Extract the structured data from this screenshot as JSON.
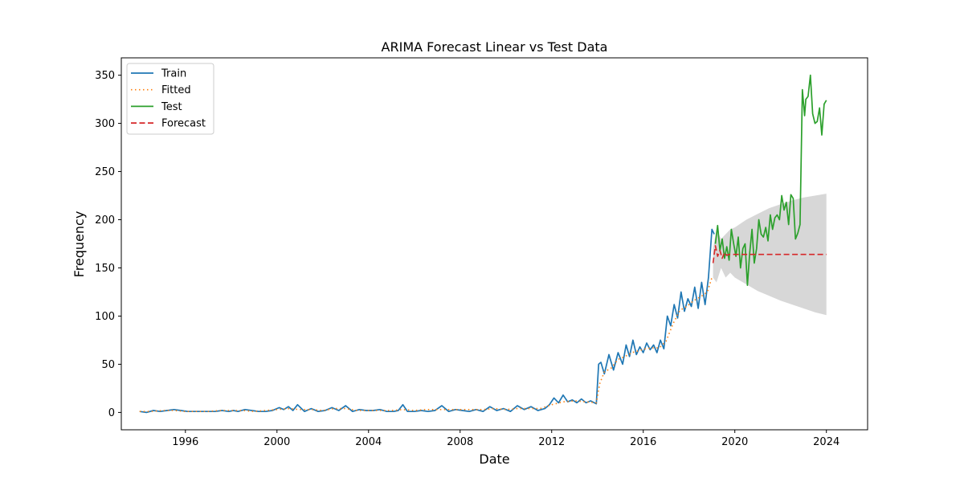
{
  "chart_data": {
    "type": "line",
    "title": "ARIMA Forecast Linear vs Test Data",
    "xlabel": "Date",
    "ylabel": "Frequency",
    "xlim": [
      1993.2,
      2025.8
    ],
    "ylim": [
      -18,
      368
    ],
    "xticks": [
      1996,
      2000,
      2004,
      2008,
      2012,
      2016,
      2020,
      2024
    ],
    "yticks": [
      0,
      50,
      100,
      150,
      200,
      250,
      300,
      350
    ],
    "grid": false,
    "legend_position": "top-left",
    "colors": {
      "train": "#1f77b4",
      "fitted": "#ff7f0e",
      "test": "#2ca02c",
      "forecast": "#d62728",
      "confidence_band": "#d3d3d3"
    },
    "series": [
      {
        "name": "Train",
        "style": "solid",
        "x": [
          1994.0,
          1994.3,
          1994.6,
          1994.9,
          1995.2,
          1995.5,
          1995.8,
          1996.1,
          1996.4,
          1996.7,
          1997.0,
          1997.3,
          1997.6,
          1997.9,
          1998.1,
          1998.3,
          1998.6,
          1998.9,
          1999.2,
          1999.5,
          1999.8,
          2000.1,
          2000.3,
          2000.5,
          2000.7,
          2000.9,
          2001.2,
          2001.5,
          2001.8,
          2002.1,
          2002.4,
          2002.7,
          2003.0,
          2003.3,
          2003.6,
          2003.9,
          2004.2,
          2004.5,
          2004.8,
          2005.1,
          2005.3,
          2005.5,
          2005.7,
          2006.0,
          2006.3,
          2006.6,
          2006.9,
          2007.2,
          2007.5,
          2007.8,
          2008.1,
          2008.4,
          2008.7,
          2009.0,
          2009.3,
          2009.6,
          2009.9,
          2010.2,
          2010.5,
          2010.8,
          2011.1,
          2011.4,
          2011.7,
          2011.9,
          2012.1,
          2012.3,
          2012.5,
          2012.7,
          2012.9,
          2013.1,
          2013.3,
          2013.5,
          2013.7,
          2013.95,
          2014.05,
          2014.15,
          2014.3,
          2014.5,
          2014.7,
          2014.9,
          2015.1,
          2015.25,
          2015.4,
          2015.55,
          2015.7,
          2015.85,
          2016.0,
          2016.15,
          2016.3,
          2016.45,
          2016.6,
          2016.75,
          2016.9,
          2017.05,
          2017.2,
          2017.35,
          2017.5,
          2017.65,
          2017.8,
          2017.95,
          2018.1,
          2018.25,
          2018.4,
          2018.55,
          2018.7,
          2018.85,
          2019.0,
          2019.1
        ],
        "y": [
          1,
          0,
          2,
          1,
          2,
          3,
          2,
          1,
          1,
          1,
          1,
          1,
          2,
          1,
          2,
          1,
          3,
          2,
          1,
          1,
          2,
          5,
          3,
          6,
          2,
          8,
          1,
          4,
          1,
          2,
          5,
          2,
          7,
          1,
          3,
          2,
          2,
          3,
          1,
          1,
          2,
          8,
          1,
          1,
          2,
          1,
          2,
          7,
          1,
          3,
          2,
          1,
          3,
          1,
          6,
          2,
          4,
          1,
          7,
          3,
          6,
          2,
          4,
          8,
          15,
          10,
          18,
          11,
          13,
          10,
          14,
          10,
          12,
          9,
          50,
          52,
          40,
          60,
          44,
          62,
          50,
          70,
          58,
          75,
          60,
          68,
          62,
          72,
          65,
          70,
          62,
          75,
          66,
          100,
          90,
          112,
          98,
          125,
          105,
          118,
          110,
          130,
          108,
          135,
          112,
          140,
          190,
          185
        ]
      },
      {
        "name": "Fitted",
        "style": "dotted",
        "x": [
          1994.0,
          1994.5,
          1995.0,
          1995.5,
          1996.0,
          1996.5,
          1997.0,
          1997.5,
          1998.0,
          1998.5,
          1999.0,
          1999.5,
          2000.0,
          2000.5,
          2001.0,
          2001.5,
          2002.0,
          2002.5,
          2003.0,
          2003.5,
          2004.0,
          2004.5,
          2005.0,
          2005.5,
          2006.0,
          2006.5,
          2007.0,
          2007.5,
          2008.0,
          2008.5,
          2009.0,
          2009.5,
          2010.0,
          2010.5,
          2011.0,
          2011.5,
          2012.0,
          2012.5,
          2013.0,
          2013.5,
          2013.95,
          2014.1,
          2014.3,
          2014.6,
          2014.9,
          2015.2,
          2015.5,
          2015.8,
          2016.1,
          2016.4,
          2016.7,
          2017.0,
          2017.3,
          2017.6,
          2017.9,
          2018.2,
          2018.5,
          2018.8,
          2019.0
        ],
        "y": [
          1,
          1,
          2,
          2,
          1,
          1,
          1,
          2,
          2,
          2,
          1,
          2,
          3,
          4,
          3,
          3,
          2,
          4,
          4,
          2,
          2,
          2,
          2,
          3,
          2,
          3,
          3,
          3,
          3,
          3,
          3,
          4,
          3,
          4,
          4,
          4,
          8,
          11,
          12,
          11,
          10,
          30,
          42,
          46,
          55,
          58,
          62,
          64,
          66,
          67,
          67,
          74,
          92,
          106,
          110,
          116,
          120,
          125,
          140
        ]
      },
      {
        "name": "Test",
        "style": "solid",
        "x": [
          2019.15,
          2019.25,
          2019.35,
          2019.45,
          2019.55,
          2019.65,
          2019.75,
          2019.85,
          2019.95,
          2020.05,
          2020.15,
          2020.25,
          2020.35,
          2020.45,
          2020.55,
          2020.65,
          2020.75,
          2020.85,
          2020.95,
          2021.05,
          2021.15,
          2021.25,
          2021.35,
          2021.45,
          2021.55,
          2021.65,
          2021.75,
          2021.85,
          2021.95,
          2022.05,
          2022.15,
          2022.25,
          2022.35,
          2022.45,
          2022.55,
          2022.65,
          2022.75,
          2022.85,
          2022.95,
          2023.05,
          2023.1,
          2023.2,
          2023.3,
          2023.4,
          2023.5,
          2023.6,
          2023.7,
          2023.8,
          2023.9,
          2024.0
        ],
        "y": [
          175,
          194,
          168,
          180,
          160,
          172,
          158,
          190,
          175,
          162,
          182,
          150,
          170,
          175,
          132,
          165,
          190,
          155,
          170,
          200,
          185,
          182,
          192,
          178,
          205,
          190,
          202,
          205,
          200,
          225,
          210,
          218,
          195,
          226,
          222,
          180,
          186,
          195,
          335,
          308,
          325,
          328,
          350,
          310,
          300,
          302,
          316,
          288,
          320,
          324
        ]
      },
      {
        "name": "Forecast",
        "style": "dashed",
        "x": [
          2019.05,
          2019.15,
          2019.25,
          2019.35,
          2019.45,
          2019.55,
          2019.65,
          2019.75,
          2020.0,
          2021.0,
          2022.0,
          2023.0,
          2024.0
        ],
        "y": [
          155,
          173,
          162,
          168,
          160,
          166,
          163,
          164,
          164,
          164,
          164,
          164,
          164
        ]
      }
    ],
    "confidence_interval": {
      "x": [
        2019.05,
        2019.2,
        2019.4,
        2019.6,
        2019.8,
        2020.0,
        2020.5,
        2021.0,
        2021.5,
        2022.0,
        2022.5,
        2023.0,
        2023.5,
        2024.0
      ],
      "lower": [
        140,
        135,
        150,
        140,
        145,
        140,
        133,
        126,
        121,
        116,
        112,
        108,
        104,
        101
      ],
      "upper": [
        170,
        190,
        180,
        185,
        190,
        192,
        200,
        206,
        212,
        216,
        220,
        223,
        225,
        227
      ]
    }
  }
}
